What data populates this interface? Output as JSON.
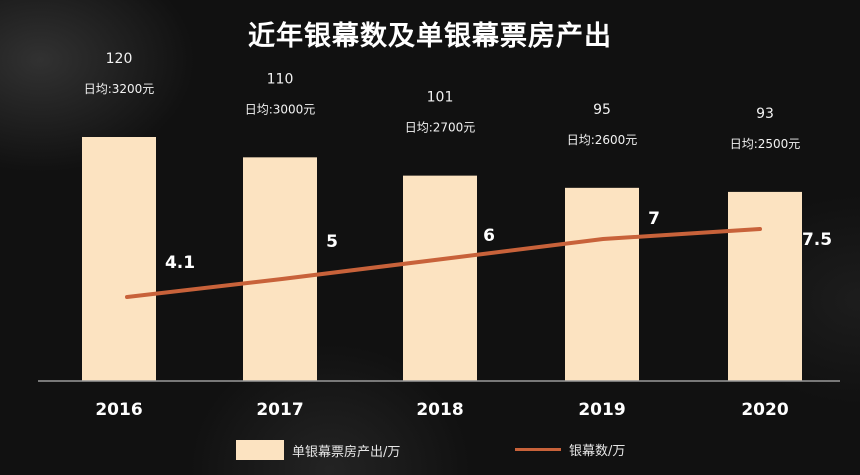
{
  "title": "近年银幕数及单银幕票房产出",
  "chart_data": {
    "type": "bar",
    "categories": [
      "2016",
      "2017",
      "2018",
      "2019",
      "2020"
    ],
    "series": [
      {
        "name": "单银幕票房产出/万",
        "type": "bar",
        "values": [
          120,
          110,
          101,
          95,
          93
        ],
        "daily_labels": [
          "日均:3200元",
          "日均:3000元",
          "日均:2700元",
          "日均:2600元",
          "日均:2500元"
        ]
      },
      {
        "name": "银幕数/万",
        "type": "line",
        "values": [
          4.1,
          5,
          6,
          7,
          7.5
        ]
      }
    ],
    "xlabel": "",
    "ylabel": "",
    "bar_ylim": [
      0,
      120
    ],
    "line_ylim": [
      0,
      10
    ],
    "grid": false,
    "legend": "bottom"
  },
  "colors": {
    "background": "#111111",
    "bar": "#fce3c1",
    "line": "#c8623a",
    "text": "#f2f2f2"
  }
}
